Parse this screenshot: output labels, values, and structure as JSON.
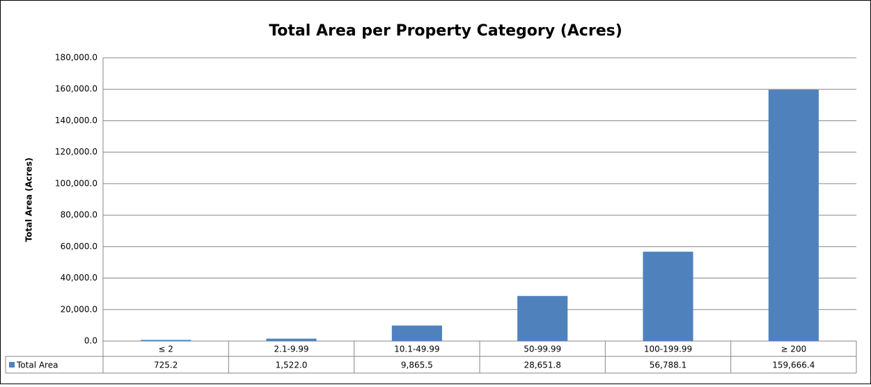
{
  "chart_data": {
    "type": "bar",
    "title": "Total Area per Property Category (Acres)",
    "y_label": "Total Area (Acres)",
    "categories": [
      "≤ 2",
      "2.1-9.99",
      "10.1-49.99",
      "50-99.99",
      "100-199.99",
      "≥ 200"
    ],
    "series": [
      {
        "name": "Total Area",
        "color": "#4f81bd",
        "values": [
          725.2,
          1522.0,
          9865.5,
          28651.8,
          56788.1,
          159666.4
        ],
        "value_labels": [
          "725.2",
          "1,522.0",
          "9,865.5",
          "28,651.8",
          "56,788.1",
          "159,666.4"
        ]
      }
    ],
    "ylim": [
      0,
      180000
    ],
    "yticks": [
      {
        "value": 0,
        "label": "0.0"
      },
      {
        "value": 20000,
        "label": "20,000.0"
      },
      {
        "value": 40000,
        "label": "40,000.0"
      },
      {
        "value": 60000,
        "label": "60,000.0"
      },
      {
        "value": 80000,
        "label": "80,000.0"
      },
      {
        "value": 100000,
        "label": "100,000.0"
      },
      {
        "value": 120000,
        "label": "120,000.0"
      },
      {
        "value": 140000,
        "label": "140,000.0"
      },
      {
        "value": 160000,
        "label": "160,000.0"
      },
      {
        "value": 180000,
        "label": "180,000.0"
      }
    ],
    "grid": true
  }
}
